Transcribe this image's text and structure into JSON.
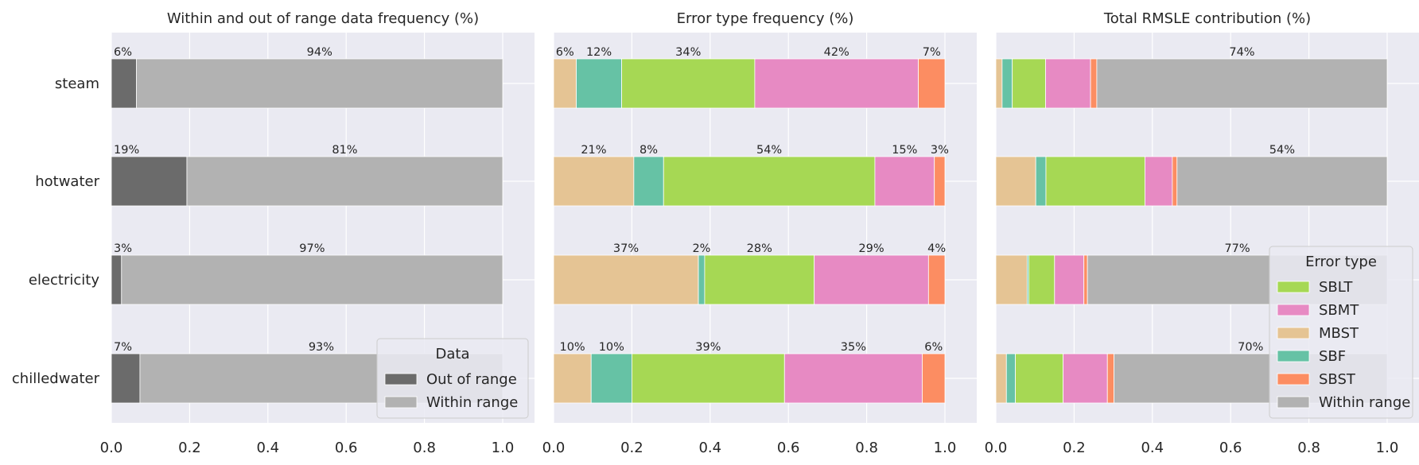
{
  "chart_data": [
    {
      "type": "bar",
      "orientation": "horizontal",
      "stacked": true,
      "title": "Within and out of range data frequency (%)",
      "categories": [
        "steam",
        "hotwater",
        "electricity",
        "chilledwater"
      ],
      "xlim": [
        0,
        1
      ],
      "xticks": [
        "0.0",
        "0.2",
        "0.4",
        "0.6",
        "0.8",
        "1.0"
      ],
      "grid": true,
      "series": [
        {
          "name": "Out of range",
          "color": "#6b6b6b",
          "values": [
            0.064,
            0.193,
            0.026,
            0.073
          ],
          "labels": [
            "6%",
            "19%",
            "3%",
            "7%"
          ]
        },
        {
          "name": "Within range",
          "color": "#b2b2b2",
          "values": [
            0.936,
            0.807,
            0.974,
            0.927
          ],
          "labels": [
            "94%",
            "81%",
            "97%",
            "93%"
          ]
        }
      ],
      "legend": {
        "title": "Data",
        "position": "lower-right",
        "entries": [
          "Out of range",
          "Within range"
        ]
      }
    },
    {
      "type": "bar",
      "orientation": "horizontal",
      "stacked": true,
      "title": "Error type frequency (%)",
      "categories": [
        "steam",
        "hotwater",
        "electricity",
        "chilledwater"
      ],
      "xlim": [
        0,
        1
      ],
      "xticks": [
        "0.0",
        "0.2",
        "0.4",
        "0.6",
        "0.8",
        "1.0"
      ],
      "grid": true,
      "series": [
        {
          "name": "MBST",
          "color": "#e5c494",
          "values": [
            0.058,
            0.205,
            0.37,
            0.096
          ],
          "labels": [
            "6%",
            "21%",
            "37%",
            "10%"
          ]
        },
        {
          "name": "SBF",
          "color": "#66c2a5",
          "values": [
            0.116,
            0.076,
            0.016,
            0.104
          ],
          "labels": [
            "12%",
            "8%",
            "2%",
            "10%"
          ]
        },
        {
          "name": "SBLT",
          "color": "#a6d854",
          "values": [
            0.34,
            0.54,
            0.28,
            0.39
          ],
          "labels": [
            "34%",
            "54%",
            "28%",
            "39%"
          ]
        },
        {
          "name": "SBMT",
          "color": "#e78ac3",
          "values": [
            0.418,
            0.152,
            0.292,
            0.352
          ],
          "labels": [
            "42%",
            "15%",
            "29%",
            "35%"
          ]
        },
        {
          "name": "SBST",
          "color": "#fc8d62",
          "values": [
            0.068,
            0.027,
            0.042,
            0.058
          ],
          "labels": [
            "7%",
            "3%",
            "4%",
            "6%"
          ]
        }
      ]
    },
    {
      "type": "bar",
      "orientation": "horizontal",
      "stacked": true,
      "title": "Total RMSLE contribution (%)",
      "categories": [
        "steam",
        "hotwater",
        "electricity",
        "chilledwater"
      ],
      "xlim": [
        0,
        1
      ],
      "xticks": [
        "0.0",
        "0.2",
        "0.4",
        "0.6",
        "0.8",
        "1.0"
      ],
      "grid": true,
      "series": [
        {
          "name": "MBST",
          "color": "#e5c494",
          "values": [
            0.016,
            0.102,
            0.08,
            0.027
          ],
          "labels": [
            "",
            "",
            "",
            ""
          ]
        },
        {
          "name": "SBF",
          "color": "#66c2a5",
          "values": [
            0.026,
            0.026,
            0.004,
            0.023
          ],
          "labels": [
            "",
            "",
            "",
            ""
          ]
        },
        {
          "name": "SBLT",
          "color": "#a6d854",
          "values": [
            0.085,
            0.253,
            0.066,
            0.122
          ],
          "labels": [
            "",
            "",
            "",
            ""
          ]
        },
        {
          "name": "SBMT",
          "color": "#e78ac3",
          "values": [
            0.115,
            0.07,
            0.075,
            0.113
          ],
          "labels": [
            "",
            "",
            "",
            ""
          ]
        },
        {
          "name": "SBST",
          "color": "#fc8d62",
          "values": [
            0.016,
            0.012,
            0.009,
            0.017
          ],
          "labels": [
            "",
            "",
            "",
            ""
          ]
        },
        {
          "name": "Within range",
          "color": "#b2b2b2",
          "values": [
            0.742,
            0.537,
            0.766,
            0.698
          ],
          "labels": [
            "74%",
            "54%",
            "77%",
            "70%"
          ]
        }
      ],
      "legend": {
        "title": "Error type",
        "position": "lower-right",
        "entries": [
          "SBLT",
          "SBMT",
          "MBST",
          "SBF",
          "SBST",
          "Within range"
        ]
      }
    }
  ]
}
